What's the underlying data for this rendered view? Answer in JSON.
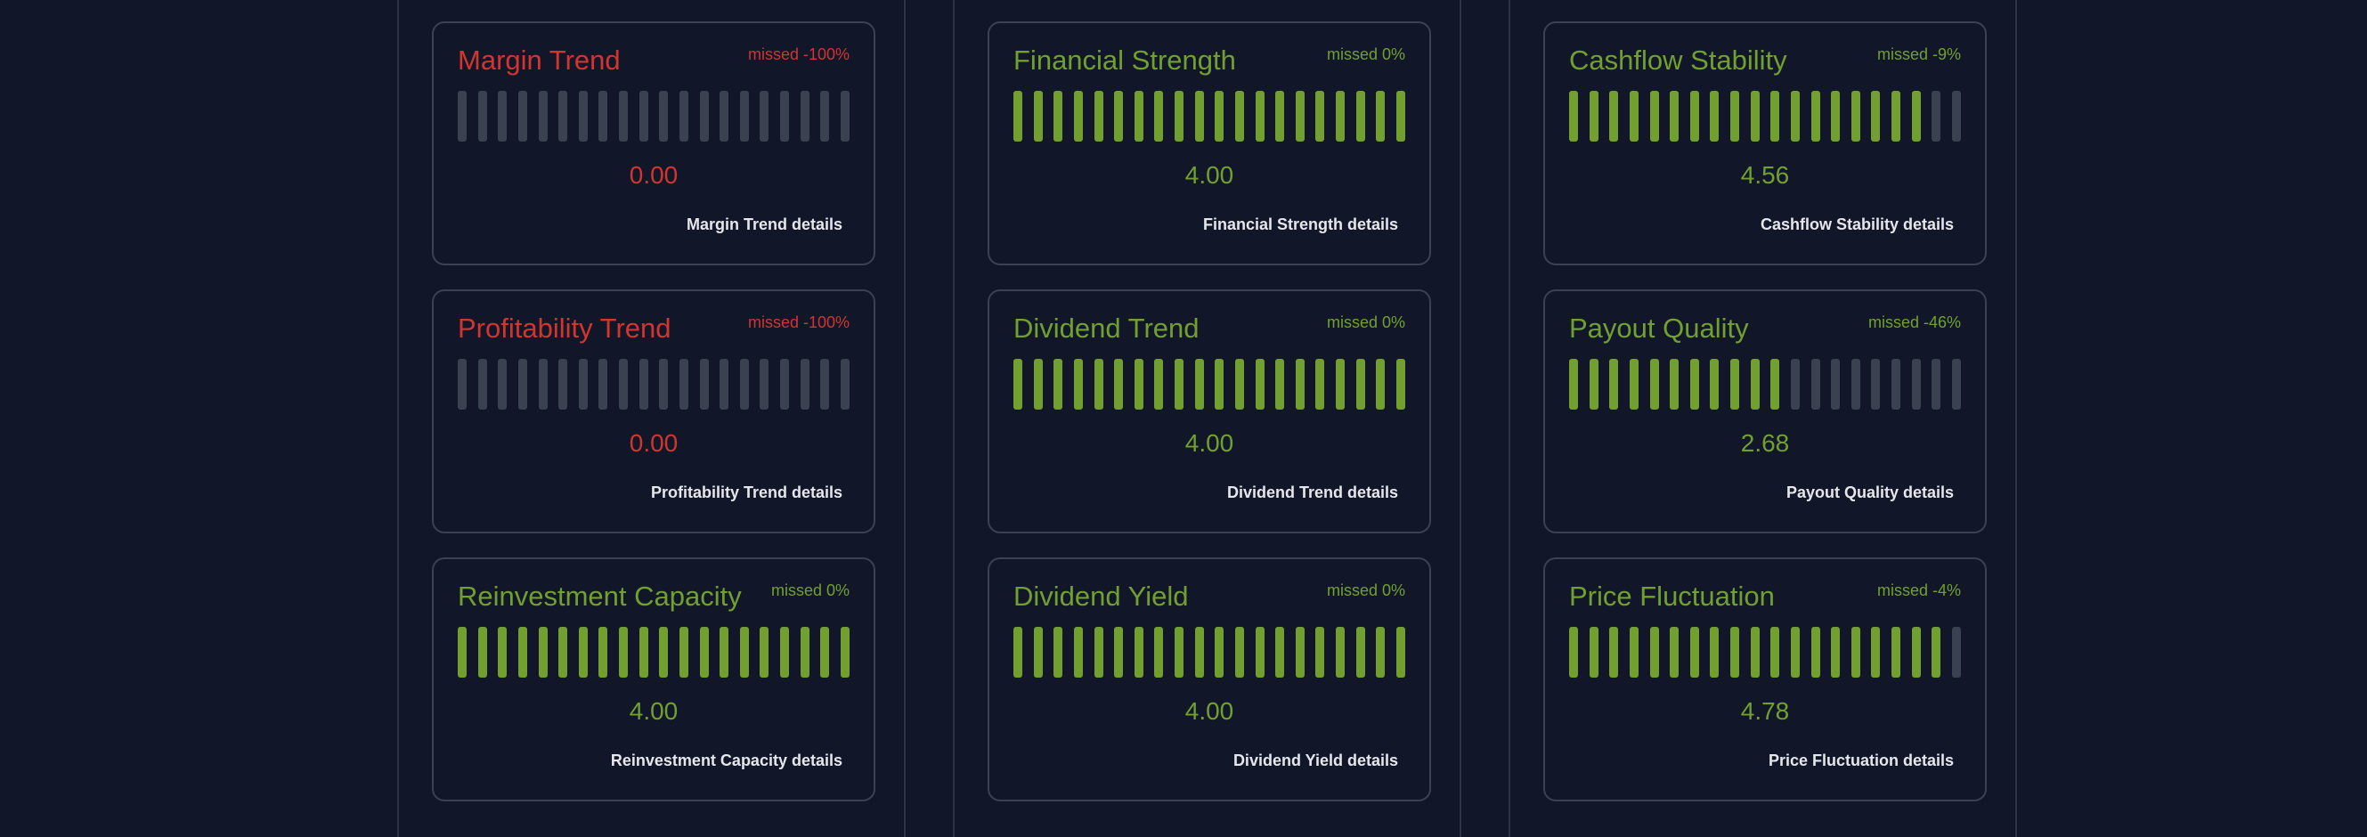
{
  "colors": {
    "good": "#72a030",
    "bad": "#d0362e",
    "empty_segment": "#3a4150",
    "background": "#111729",
    "border": "#3a4252"
  },
  "columns": [
    {
      "cards": [
        {
          "title": "Margin Trend",
          "missed": "missed -100%",
          "value": "0.00",
          "details": "Margin Trend details",
          "status": "bad",
          "filled_segments": 0,
          "total_segments": 20
        },
        {
          "title": "Profitability Trend",
          "missed": "missed -100%",
          "value": "0.00",
          "details": "Profitability Trend details",
          "status": "bad",
          "filled_segments": 0,
          "total_segments": 20
        },
        {
          "title": "Reinvestment Capacity",
          "missed": "missed 0%",
          "value": "4.00",
          "details": "Reinvestment Capacity details",
          "status": "good",
          "filled_segments": 20,
          "total_segments": 20
        }
      ]
    },
    {
      "cards": [
        {
          "title": "Financial Strength",
          "missed": "missed 0%",
          "value": "4.00",
          "details": "Financial Strength details",
          "status": "good",
          "filled_segments": 20,
          "total_segments": 20
        },
        {
          "title": "Dividend Trend",
          "missed": "missed 0%",
          "value": "4.00",
          "details": "Dividend Trend details",
          "status": "good",
          "filled_segments": 20,
          "total_segments": 20
        },
        {
          "title": "Dividend Yield",
          "missed": "missed 0%",
          "value": "4.00",
          "details": "Dividend Yield details",
          "status": "good",
          "filled_segments": 20,
          "total_segments": 20
        }
      ]
    },
    {
      "cards": [
        {
          "title": "Cashflow Stability",
          "missed": "missed -9%",
          "value": "4.56",
          "details": "Cashflow Stability details",
          "status": "good",
          "filled_segments": 18,
          "total_segments": 20
        },
        {
          "title": "Payout Quality",
          "missed": "missed -46%",
          "value": "2.68",
          "details": "Payout Quality details",
          "status": "good",
          "filled_segments": 11,
          "total_segments": 20
        },
        {
          "title": "Price Fluctuation",
          "missed": "missed -4%",
          "value": "4.78",
          "details": "Price Fluctuation details",
          "status": "good",
          "filled_segments": 19,
          "total_segments": 20
        }
      ]
    }
  ]
}
